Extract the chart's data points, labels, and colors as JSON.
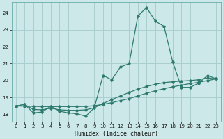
{
  "xlabel": "Humidex (Indice chaleur)",
  "x": [
    0,
    1,
    2,
    3,
    4,
    5,
    6,
    7,
    8,
    9,
    10,
    11,
    12,
    13,
    14,
    15,
    16,
    17,
    18,
    19,
    20,
    21,
    22,
    23
  ],
  "line1": [
    18.5,
    18.6,
    18.1,
    18.15,
    18.5,
    18.2,
    18.1,
    18.05,
    17.9,
    18.4,
    20.3,
    20.05,
    20.8,
    21.0,
    23.8,
    24.3,
    23.5,
    23.2,
    21.1,
    19.6,
    19.6,
    19.85,
    20.3,
    20.1
  ],
  "line2": [
    18.5,
    18.5,
    18.48,
    18.47,
    18.47,
    18.47,
    18.47,
    18.47,
    18.48,
    18.52,
    18.6,
    18.7,
    18.82,
    18.94,
    19.1,
    19.25,
    19.4,
    19.52,
    19.63,
    19.73,
    19.82,
    19.9,
    20.0,
    20.1
  ],
  "line3": [
    18.5,
    18.6,
    18.3,
    18.28,
    18.38,
    18.28,
    18.25,
    18.25,
    18.28,
    18.4,
    18.65,
    18.88,
    19.1,
    19.3,
    19.5,
    19.65,
    19.78,
    19.88,
    19.93,
    19.97,
    20.0,
    20.05,
    20.15,
    20.1
  ],
  "line_color": "#2e7b6e",
  "bg_color": "#cce8e8",
  "grid_color": "#aacfcf",
  "ylim": [
    17.6,
    24.6
  ],
  "xlim": [
    -0.5,
    23.5
  ],
  "yticks": [
    18,
    19,
    20,
    21,
    22,
    23,
    24
  ],
  "xticks": [
    0,
    1,
    2,
    3,
    4,
    5,
    6,
    7,
    8,
    9,
    10,
    11,
    12,
    13,
    14,
    15,
    16,
    17,
    18,
    19,
    20,
    21,
    22,
    23
  ]
}
